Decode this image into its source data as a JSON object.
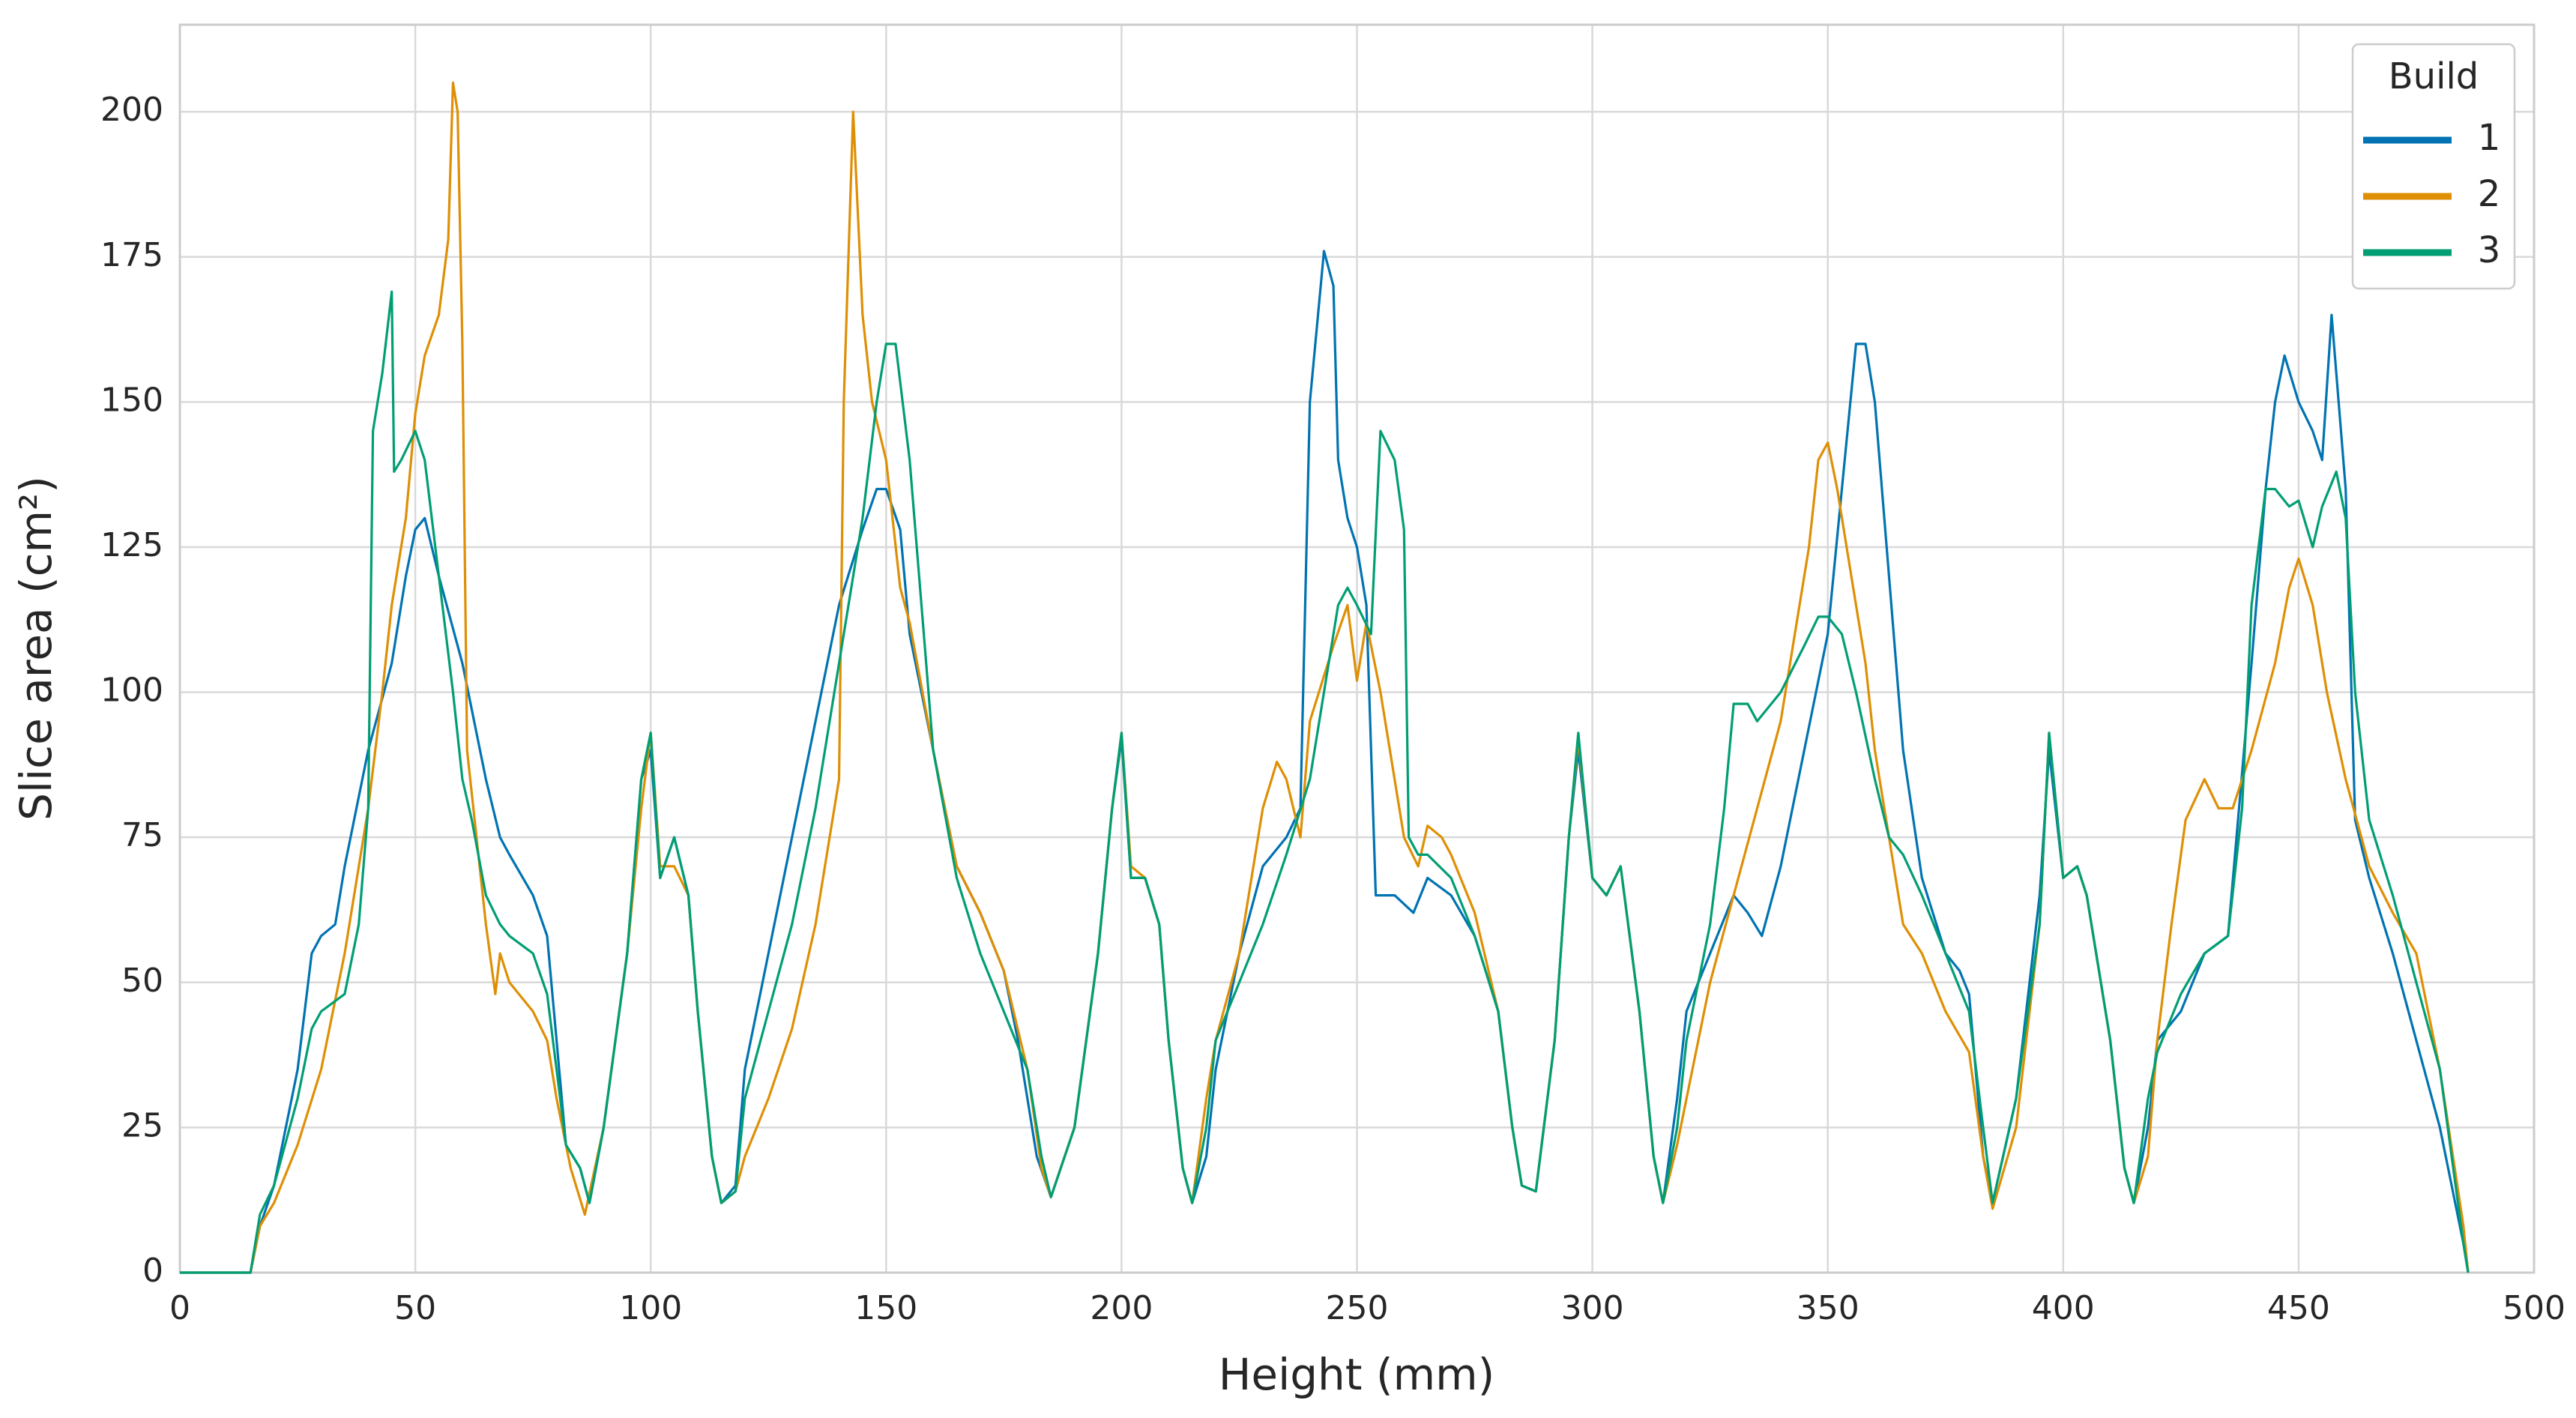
{
  "chart_data": {
    "type": "line",
    "xlabel": "Height (mm)",
    "ylabel": "Slice area (cm²)",
    "xlim": [
      0,
      500
    ],
    "ylim": [
      0,
      215
    ],
    "xticks": [
      0,
      50,
      100,
      150,
      200,
      250,
      300,
      350,
      400,
      450,
      500
    ],
    "yticks": [
      0,
      25,
      50,
      75,
      100,
      125,
      150,
      175,
      200
    ],
    "grid": true,
    "legend_title": "Build",
    "legend_position": "upper right",
    "series": [
      {
        "name": "1",
        "color": "#0173b2",
        "x": [
          0,
          15,
          17,
          20,
          25,
          28,
          30,
          33,
          35,
          40,
          45,
          48,
          50,
          52,
          55,
          60,
          65,
          68,
          70,
          75,
          78,
          80,
          82,
          85,
          87,
          90,
          95,
          98,
          100,
          102,
          105,
          108,
          110,
          113,
          115,
          118,
          120,
          125,
          130,
          135,
          140,
          145,
          148,
          150,
          153,
          155,
          160,
          165,
          170,
          175,
          178,
          180,
          182,
          185,
          190,
          195,
          198,
          200,
          202,
          205,
          208,
          210,
          213,
          215,
          218,
          220,
          225,
          230,
          235,
          238,
          240,
          243,
          245,
          246,
          248,
          250,
          252,
          254,
          258,
          262,
          265,
          270,
          275,
          280,
          283,
          285,
          288,
          292,
          295,
          297,
          300,
          303,
          306,
          310,
          313,
          315,
          318,
          320,
          325,
          330,
          333,
          336,
          340,
          345,
          350,
          353,
          356,
          358,
          360,
          363,
          366,
          370,
          375,
          378,
          380,
          383,
          385,
          390,
          395,
          397,
          400,
          403,
          405,
          410,
          413,
          415,
          418,
          420,
          425,
          430,
          435,
          440,
          443,
          445,
          447,
          450,
          453,
          455,
          457,
          460,
          462,
          465,
          470,
          475,
          480,
          485,
          486
        ],
        "values": [
          0,
          0,
          8,
          15,
          35,
          55,
          58,
          60,
          70,
          90,
          105,
          120,
          128,
          130,
          120,
          105,
          85,
          75,
          72,
          65,
          58,
          40,
          22,
          18,
          12,
          25,
          55,
          85,
          90,
          68,
          75,
          65,
          45,
          20,
          12,
          15,
          35,
          55,
          75,
          95,
          115,
          128,
          135,
          135,
          128,
          110,
          90,
          70,
          62,
          52,
          40,
          30,
          20,
          13,
          25,
          55,
          80,
          92,
          68,
          68,
          60,
          40,
          18,
          12,
          20,
          35,
          55,
          70,
          75,
          80,
          150,
          176,
          170,
          140,
          130,
          125,
          115,
          65,
          65,
          62,
          68,
          65,
          58,
          45,
          25,
          15,
          14,
          40,
          75,
          90,
          68,
          65,
          70,
          45,
          20,
          12,
          30,
          45,
          55,
          65,
          62,
          58,
          70,
          90,
          110,
          135,
          160,
          160,
          150,
          120,
          90,
          68,
          55,
          52,
          48,
          20,
          12,
          30,
          65,
          90,
          68,
          70,
          65,
          40,
          18,
          12,
          25,
          40,
          45,
          55,
          58,
          105,
          135,
          150,
          158,
          150,
          145,
          140,
          165,
          135,
          78,
          68,
          55,
          40,
          25,
          5,
          0
        ]
      },
      {
        "name": "2",
        "color": "#de8f05",
        "x": [
          0,
          15,
          17,
          20,
          25,
          30,
          35,
          40,
          43,
          45,
          48,
          50,
          52,
          55,
          57,
          58,
          59,
          60,
          61,
          63,
          65,
          67,
          68,
          70,
          75,
          78,
          80,
          83,
          86,
          90,
          95,
          98,
          100,
          102,
          105,
          108,
          110,
          113,
          115,
          118,
          120,
          125,
          130,
          135,
          138,
          140,
          141,
          143,
          145,
          147,
          150,
          153,
          155,
          160,
          165,
          170,
          175,
          180,
          183,
          185,
          190,
          195,
          198,
          200,
          202,
          205,
          208,
          210,
          213,
          215,
          218,
          220,
          225,
          230,
          233,
          235,
          238,
          240,
          245,
          248,
          250,
          252,
          255,
          260,
          263,
          265,
          268,
          270,
          275,
          280,
          283,
          285,
          288,
          292,
          295,
          297,
          300,
          303,
          306,
          310,
          313,
          315,
          318,
          320,
          325,
          330,
          335,
          340,
          343,
          346,
          348,
          350,
          352,
          355,
          358,
          360,
          363,
          366,
          370,
          375,
          380,
          383,
          385,
          390,
          395,
          397,
          400,
          403,
          405,
          410,
          413,
          415,
          418,
          420,
          423,
          426,
          430,
          433,
          436,
          440,
          445,
          448,
          450,
          453,
          456,
          460,
          465,
          470,
          475,
          480,
          485,
          486
        ],
        "values": [
          0,
          0,
          8,
          12,
          22,
          35,
          55,
          80,
          100,
          115,
          130,
          148,
          158,
          165,
          178,
          205,
          200,
          160,
          90,
          75,
          60,
          48,
          55,
          50,
          45,
          40,
          30,
          18,
          10,
          25,
          55,
          80,
          93,
          70,
          70,
          65,
          45,
          20,
          12,
          14,
          20,
          30,
          42,
          60,
          75,
          85,
          150,
          200,
          165,
          150,
          140,
          118,
          112,
          90,
          70,
          62,
          52,
          35,
          18,
          13,
          25,
          55,
          80,
          93,
          70,
          68,
          60,
          40,
          18,
          12,
          30,
          40,
          55,
          80,
          88,
          85,
          75,
          95,
          108,
          115,
          102,
          112,
          100,
          75,
          70,
          77,
          75,
          72,
          62,
          45,
          25,
          15,
          14,
          40,
          75,
          92,
          68,
          65,
          70,
          45,
          20,
          12,
          22,
          30,
          50,
          65,
          80,
          95,
          110,
          125,
          140,
          143,
          135,
          120,
          105,
          90,
          75,
          60,
          55,
          45,
          38,
          20,
          11,
          25,
          60,
          93,
          68,
          70,
          65,
          40,
          18,
          12,
          20,
          40,
          60,
          78,
          85,
          80,
          80,
          90,
          105,
          118,
          123,
          115,
          100,
          85,
          70,
          62,
          55,
          35,
          8,
          0
        ]
      },
      {
        "name": "3",
        "color": "#029e73",
        "x": [
          0,
          15,
          17,
          20,
          25,
          28,
          30,
          35,
          38,
          40,
          41,
          43,
          45,
          45.5,
          47,
          50,
          52,
          55,
          58,
          60,
          62,
          65,
          68,
          70,
          75,
          78,
          80,
          82,
          85,
          87,
          90,
          95,
          98,
          100,
          102,
          105,
          108,
          110,
          113,
          115,
          118,
          120,
          125,
          130,
          135,
          140,
          145,
          148,
          150,
          152,
          155,
          158,
          160,
          165,
          170,
          175,
          180,
          183,
          185,
          190,
          195,
          198,
          200,
          202,
          205,
          208,
          210,
          213,
          215,
          218,
          220,
          225,
          230,
          235,
          240,
          243,
          246,
          248,
          250,
          253,
          255,
          258,
          260,
          261,
          263,
          265,
          270,
          275,
          280,
          283,
          285,
          288,
          292,
          295,
          297,
          300,
          303,
          306,
          310,
          313,
          315,
          318,
          320,
          325,
          328,
          330,
          333,
          335,
          340,
          345,
          348,
          350,
          353,
          356,
          360,
          363,
          366,
          370,
          375,
          380,
          383,
          385,
          390,
          395,
          397,
          400,
          403,
          405,
          410,
          413,
          415,
          418,
          420,
          425,
          430,
          435,
          438,
          440,
          443,
          445,
          448,
          450,
          453,
          455,
          458,
          460,
          462,
          465,
          470,
          475,
          480,
          485,
          486
        ],
        "values": [
          0,
          0,
          10,
          15,
          30,
          42,
          45,
          48,
          60,
          80,
          145,
          155,
          169,
          138,
          140,
          145,
          140,
          120,
          100,
          85,
          78,
          65,
          60,
          58,
          55,
          48,
          35,
          22,
          18,
          12,
          25,
          55,
          85,
          93,
          68,
          75,
          65,
          45,
          20,
          12,
          14,
          30,
          45,
          60,
          80,
          105,
          130,
          150,
          160,
          160,
          140,
          110,
          90,
          68,
          55,
          45,
          35,
          20,
          13,
          25,
          55,
          80,
          93,
          68,
          68,
          60,
          40,
          18,
          12,
          25,
          40,
          50,
          60,
          72,
          85,
          100,
          115,
          118,
          115,
          110,
          145,
          140,
          128,
          75,
          72,
          72,
          68,
          58,
          45,
          25,
          15,
          14,
          40,
          75,
          93,
          68,
          65,
          70,
          45,
          20,
          12,
          25,
          40,
          60,
          80,
          98,
          98,
          95,
          100,
          108,
          113,
          113,
          110,
          100,
          85,
          75,
          72,
          65,
          55,
          45,
          25,
          12,
          30,
          60,
          93,
          68,
          70,
          65,
          40,
          18,
          12,
          30,
          38,
          48,
          55,
          58,
          80,
          115,
          135,
          135,
          132,
          133,
          125,
          132,
          138,
          130,
          100,
          78,
          65,
          50,
          35,
          5,
          0
        ]
      }
    ]
  }
}
